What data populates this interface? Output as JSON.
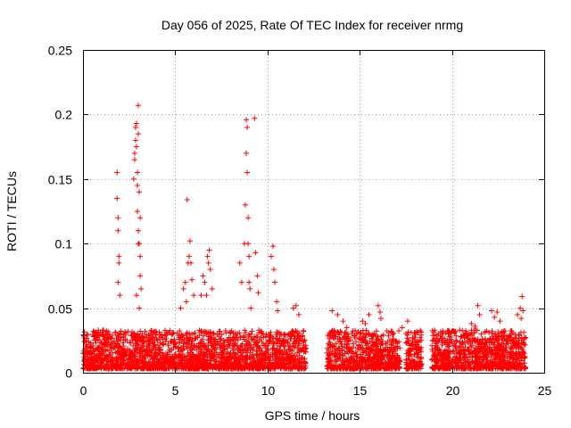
{
  "chart_data": {
    "type": "scatter",
    "title": "Day 056 of 2025, Rate Of TEC Index for receiver nrmg",
    "xlabel": "GPS time / hours",
    "ylabel": "ROTI / TECUs",
    "xlim": [
      0,
      25
    ],
    "ylim": [
      0,
      0.25
    ],
    "xticks": [
      "0",
      "5",
      "10",
      "15",
      "20",
      "25"
    ],
    "yticks": [
      "0",
      "0.05",
      "0.1",
      "0.15",
      "0.2",
      "0.25"
    ],
    "grid": true,
    "marker": "plus",
    "color": "#ff0000",
    "baseline": {
      "x_start": 0.0,
      "x_end": 24.0,
      "typical_max": 0.03,
      "gaps": [
        [
          12.1,
          13.2
        ],
        [
          17.2,
          17.5
        ],
        [
          18.4,
          18.9
        ]
      ]
    },
    "series": [
      {
        "name": "ROTI",
        "x": [
          1.85,
          1.85,
          1.9,
          1.9,
          1.95,
          1.95,
          2.0,
          1.9,
          2.75,
          2.8,
          2.8,
          2.85,
          2.85,
          2.9,
          2.9,
          2.95,
          2.95,
          2.95,
          3.0,
          3.0,
          3.0,
          3.05,
          3.05,
          3.1,
          3.1,
          3.1,
          3.15,
          2.9,
          3.0,
          3.05,
          5.3,
          5.45,
          5.55,
          5.6,
          5.7,
          5.75,
          5.8,
          5.85,
          5.9,
          6.0,
          5.65,
          6.4,
          6.5,
          6.6,
          6.75,
          6.8,
          6.85,
          6.9,
          7.0,
          6.7,
          8.5,
          8.6,
          8.75,
          8.8,
          8.85,
          8.85,
          8.9,
          8.9,
          8.95,
          8.95,
          9.0,
          9.0,
          9.05,
          9.1,
          9.3,
          9.35,
          9.45,
          9.5,
          10.2,
          10.3,
          10.35,
          10.4,
          10.5,
          10.55,
          11.4,
          11.55,
          11.7,
          13.5,
          13.8,
          14.1,
          14.3,
          15.15,
          15.3,
          15.5,
          16.0,
          16.1,
          16.15,
          17.3,
          17.6,
          21.05,
          21.25,
          21.4,
          21.5,
          22.15,
          22.3,
          22.45,
          22.6,
          23.55,
          23.7,
          23.75,
          23.8,
          23.85
        ],
        "y": [
          0.155,
          0.135,
          0.12,
          0.11,
          0.09,
          0.085,
          0.06,
          0.07,
          0.15,
          0.17,
          0.165,
          0.18,
          0.19,
          0.175,
          0.193,
          0.155,
          0.145,
          0.125,
          0.207,
          0.185,
          0.11,
          0.14,
          0.1,
          0.12,
          0.09,
          0.075,
          0.065,
          0.06,
          0.1,
          0.05,
          0.05,
          0.065,
          0.07,
          0.055,
          0.085,
          0.09,
          0.102,
          0.085,
          0.072,
          0.06,
          0.134,
          0.06,
          0.075,
          0.07,
          0.09,
          0.085,
          0.095,
          0.08,
          0.065,
          0.06,
          0.085,
          0.07,
          0.1,
          0.13,
          0.17,
          0.196,
          0.19,
          0.155,
          0.12,
          0.1,
          0.09,
          0.07,
          0.065,
          0.05,
          0.197,
          0.093,
          0.075,
          0.062,
          0.09,
          0.098,
          0.08,
          0.07,
          0.055,
          0.048,
          0.05,
          0.052,
          0.045,
          0.048,
          0.045,
          0.04,
          0.035,
          0.04,
          0.038,
          0.045,
          0.052,
          0.047,
          0.042,
          0.035,
          0.04,
          0.038,
          0.036,
          0.052,
          0.045,
          0.048,
          0.043,
          0.047,
          0.04,
          0.045,
          0.05,
          0.042,
          0.059,
          0.048
        ]
      }
    ]
  }
}
